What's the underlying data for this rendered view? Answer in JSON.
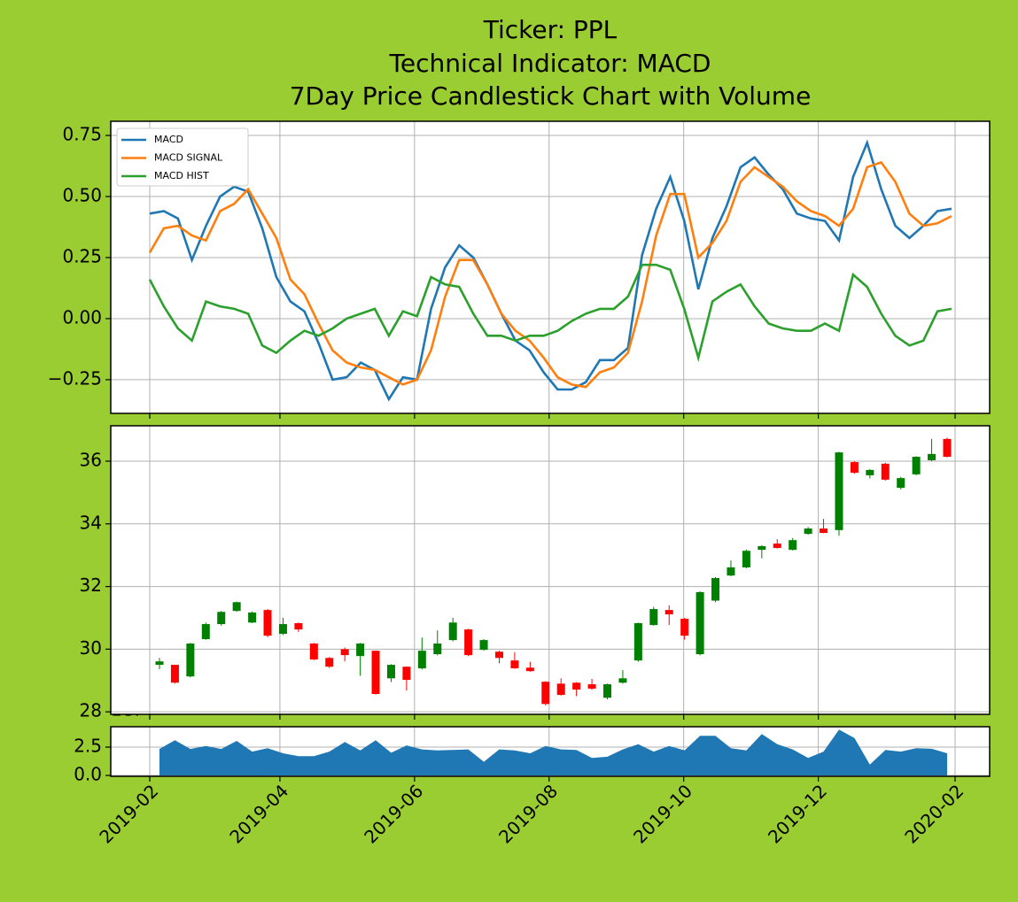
{
  "chart_data": [
    {
      "type": "line",
      "title": [
        "Ticker: PPL",
        "Technical Indicator: MACD",
        "7Day Price Candlestick Chart with Volume"
      ],
      "series": [
        {
          "name": "MACD",
          "color": "#1f77b4",
          "values": [
            0.43,
            0.44,
            0.41,
            0.24,
            0.38,
            0.5,
            0.54,
            0.52,
            0.37,
            0.17,
            0.07,
            0.03,
            -0.1,
            -0.25,
            -0.24,
            -0.18,
            -0.21,
            -0.33,
            -0.24,
            -0.25,
            0.04,
            0.21,
            0.3,
            0.25,
            0.14,
            0.02,
            -0.09,
            -0.13,
            -0.22,
            -0.29,
            -0.29,
            -0.26,
            -0.17,
            -0.17,
            -0.12,
            0.26,
            0.45,
            0.58,
            0.4,
            0.12,
            0.33,
            0.46,
            0.62,
            0.66,
            0.59,
            0.53,
            0.43,
            0.41,
            0.4,
            0.32,
            0.58,
            0.72,
            0.53,
            0.38,
            0.33,
            0.38,
            0.44,
            0.45
          ]
        },
        {
          "name": "MACD SIGNAL",
          "color": "#ff7f0e",
          "values": [
            0.27,
            0.37,
            0.38,
            0.34,
            0.32,
            0.44,
            0.47,
            0.53,
            0.43,
            0.33,
            0.16,
            0.1,
            -0.02,
            -0.13,
            -0.18,
            -0.2,
            -0.21,
            -0.24,
            -0.27,
            -0.25,
            -0.13,
            0.09,
            0.24,
            0.24,
            0.14,
            0.02,
            -0.05,
            -0.09,
            -0.16,
            -0.24,
            -0.27,
            -0.28,
            -0.22,
            -0.2,
            -0.14,
            0.07,
            0.34,
            0.51,
            0.51,
            0.25,
            0.31,
            0.4,
            0.56,
            0.62,
            0.58,
            0.54,
            0.48,
            0.44,
            0.42,
            0.38,
            0.45,
            0.62,
            0.64,
            0.56,
            0.43,
            0.38,
            0.39,
            0.42
          ]
        },
        {
          "name": "MACD HIST",
          "color": "#2ca02c",
          "values": [
            0.16,
            0.05,
            -0.04,
            -0.09,
            0.07,
            0.05,
            0.04,
            0.02,
            -0.11,
            -0.14,
            -0.09,
            -0.05,
            -0.07,
            -0.04,
            0.0,
            0.02,
            0.04,
            -0.07,
            0.03,
            0.01,
            0.17,
            0.14,
            0.13,
            0.02,
            -0.07,
            -0.07,
            -0.09,
            -0.07,
            -0.07,
            -0.05,
            -0.01,
            0.02,
            0.04,
            0.04,
            0.09,
            0.22,
            0.22,
            0.2,
            0.04,
            -0.16,
            0.07,
            0.11,
            0.14,
            0.05,
            -0.02,
            -0.04,
            -0.05,
            -0.05,
            -0.02,
            -0.05,
            0.18,
            0.13,
            0.02,
            -0.07,
            -0.11,
            -0.09,
            0.03,
            0.04
          ]
        }
      ],
      "ylim": [
        -0.388,
        0.808
      ],
      "yticks": [
        {
          "value": -0.25,
          "label": "−0.25"
        },
        {
          "value": 0,
          "label": "0.00"
        },
        {
          "value": 0.25,
          "label": "0.25"
        },
        {
          "value": 0.5,
          "label": "0.50"
        },
        {
          "value": 0.75,
          "label": "0.75"
        }
      ],
      "grid": true,
      "legend": "upper left"
    },
    {
      "type": "candlestick",
      "open": [
        29.5,
        29.5,
        29.13,
        30.32,
        30.8,
        31.22,
        30.85,
        31.25,
        30.49,
        30.83,
        30.18,
        29.72,
        30.0,
        29.78,
        29.95,
        29.07,
        29.44,
        29.39,
        29.84,
        30.29,
        30.63,
        29.98,
        29.92,
        29.64,
        29.41,
        28.96,
        28.9,
        28.93,
        28.88,
        28.45,
        28.93,
        29.64,
        30.77,
        31.25,
        30.97,
        29.84,
        31.55,
        32.35,
        32.61,
        33.17,
        33.37,
        33.17,
        33.68,
        33.85,
        33.8,
        35.97,
        35.55,
        35.92,
        35.15,
        35.58,
        36.03,
        36.71
      ],
      "high": [
        29.72,
        29.5,
        30.2,
        30.85,
        31.22,
        31.52,
        31.2,
        31.28,
        31.0,
        30.85,
        30.2,
        29.75,
        30.05,
        30.2,
        29.95,
        29.52,
        29.45,
        30.37,
        30.6,
        31.0,
        30.65,
        30.32,
        29.95,
        29.9,
        29.6,
        28.98,
        29.07,
        28.95,
        29.05,
        28.9,
        29.33,
        30.85,
        31.35,
        31.4,
        31.0,
        31.85,
        32.3,
        32.83,
        33.18,
        33.32,
        33.51,
        33.55,
        33.9,
        34.16,
        36.3,
        36.0,
        35.75,
        35.95,
        35.5,
        36.16,
        36.71,
        36.75
      ],
      "low": [
        29.36,
        28.9,
        29.1,
        30.3,
        30.75,
        31.2,
        30.83,
        30.38,
        30.45,
        30.55,
        29.65,
        29.4,
        29.61,
        29.15,
        28.55,
        28.95,
        28.68,
        29.35,
        29.8,
        30.25,
        29.78,
        29.95,
        29.55,
        29.37,
        29.28,
        28.2,
        28.52,
        28.5,
        28.7,
        28.4,
        28.9,
        29.6,
        30.75,
        30.77,
        30.3,
        29.8,
        31.5,
        32.33,
        32.58,
        32.9,
        33.21,
        33.15,
        33.65,
        33.7,
        33.62,
        35.6,
        35.45,
        35.38,
        35.1,
        35.55,
        36.0,
        36.12
      ],
      "close": [
        29.61,
        28.93,
        30.18,
        30.8,
        31.19,
        31.5,
        31.17,
        30.43,
        30.8,
        30.63,
        29.67,
        29.44,
        29.81,
        30.18,
        28.57,
        29.5,
        29.02,
        29.95,
        30.18,
        30.85,
        29.81,
        30.29,
        29.72,
        29.39,
        29.3,
        28.25,
        28.54,
        28.71,
        28.74,
        28.88,
        29.07,
        30.83,
        31.28,
        31.11,
        30.43,
        31.82,
        32.27,
        32.61,
        33.14,
        33.29,
        33.23,
        33.48,
        33.85,
        33.71,
        36.28,
        35.63,
        35.72,
        35.41,
        35.46,
        36.14,
        36.23,
        36.14
      ],
      "up_color": "green",
      "down_color": "red",
      "ylim": [
        27.92,
        37.13
      ],
      "yticks": [
        28,
        30,
        32,
        34,
        36
      ],
      "grid": true
    },
    {
      "type": "area",
      "values": [
        2.34,
        3.1,
        2.34,
        2.6,
        2.34,
        3.05,
        2.1,
        2.4,
        1.95,
        1.7,
        1.7,
        2.1,
        2.95,
        2.2,
        3.1,
        2.0,
        2.65,
        2.3,
        2.2,
        2.25,
        2.3,
        1.2,
        2.3,
        2.2,
        1.95,
        2.6,
        2.3,
        2.25,
        1.55,
        1.65,
        2.3,
        2.75,
        2.1,
        2.6,
        2.2,
        3.5,
        3.5,
        2.4,
        2.2,
        3.65,
        2.75,
        2.3,
        1.55,
        2.1,
        4.05,
        3.3,
        0.95,
        2.25,
        2.1,
        2.4,
        2.35,
        1.95
      ],
      "color": "#1f77b4",
      "offset_label": "1e7",
      "ylim": [
        -0.08,
        4.3
      ],
      "yticks": [
        {
          "value": 0,
          "label": "0.0"
        },
        2.5
      ],
      "grid": true,
      "xticks": [
        "2019-02",
        "2019-04",
        "2019-06",
        "2019-08",
        "2019-10",
        "2019-12",
        "2020-02"
      ]
    }
  ]
}
